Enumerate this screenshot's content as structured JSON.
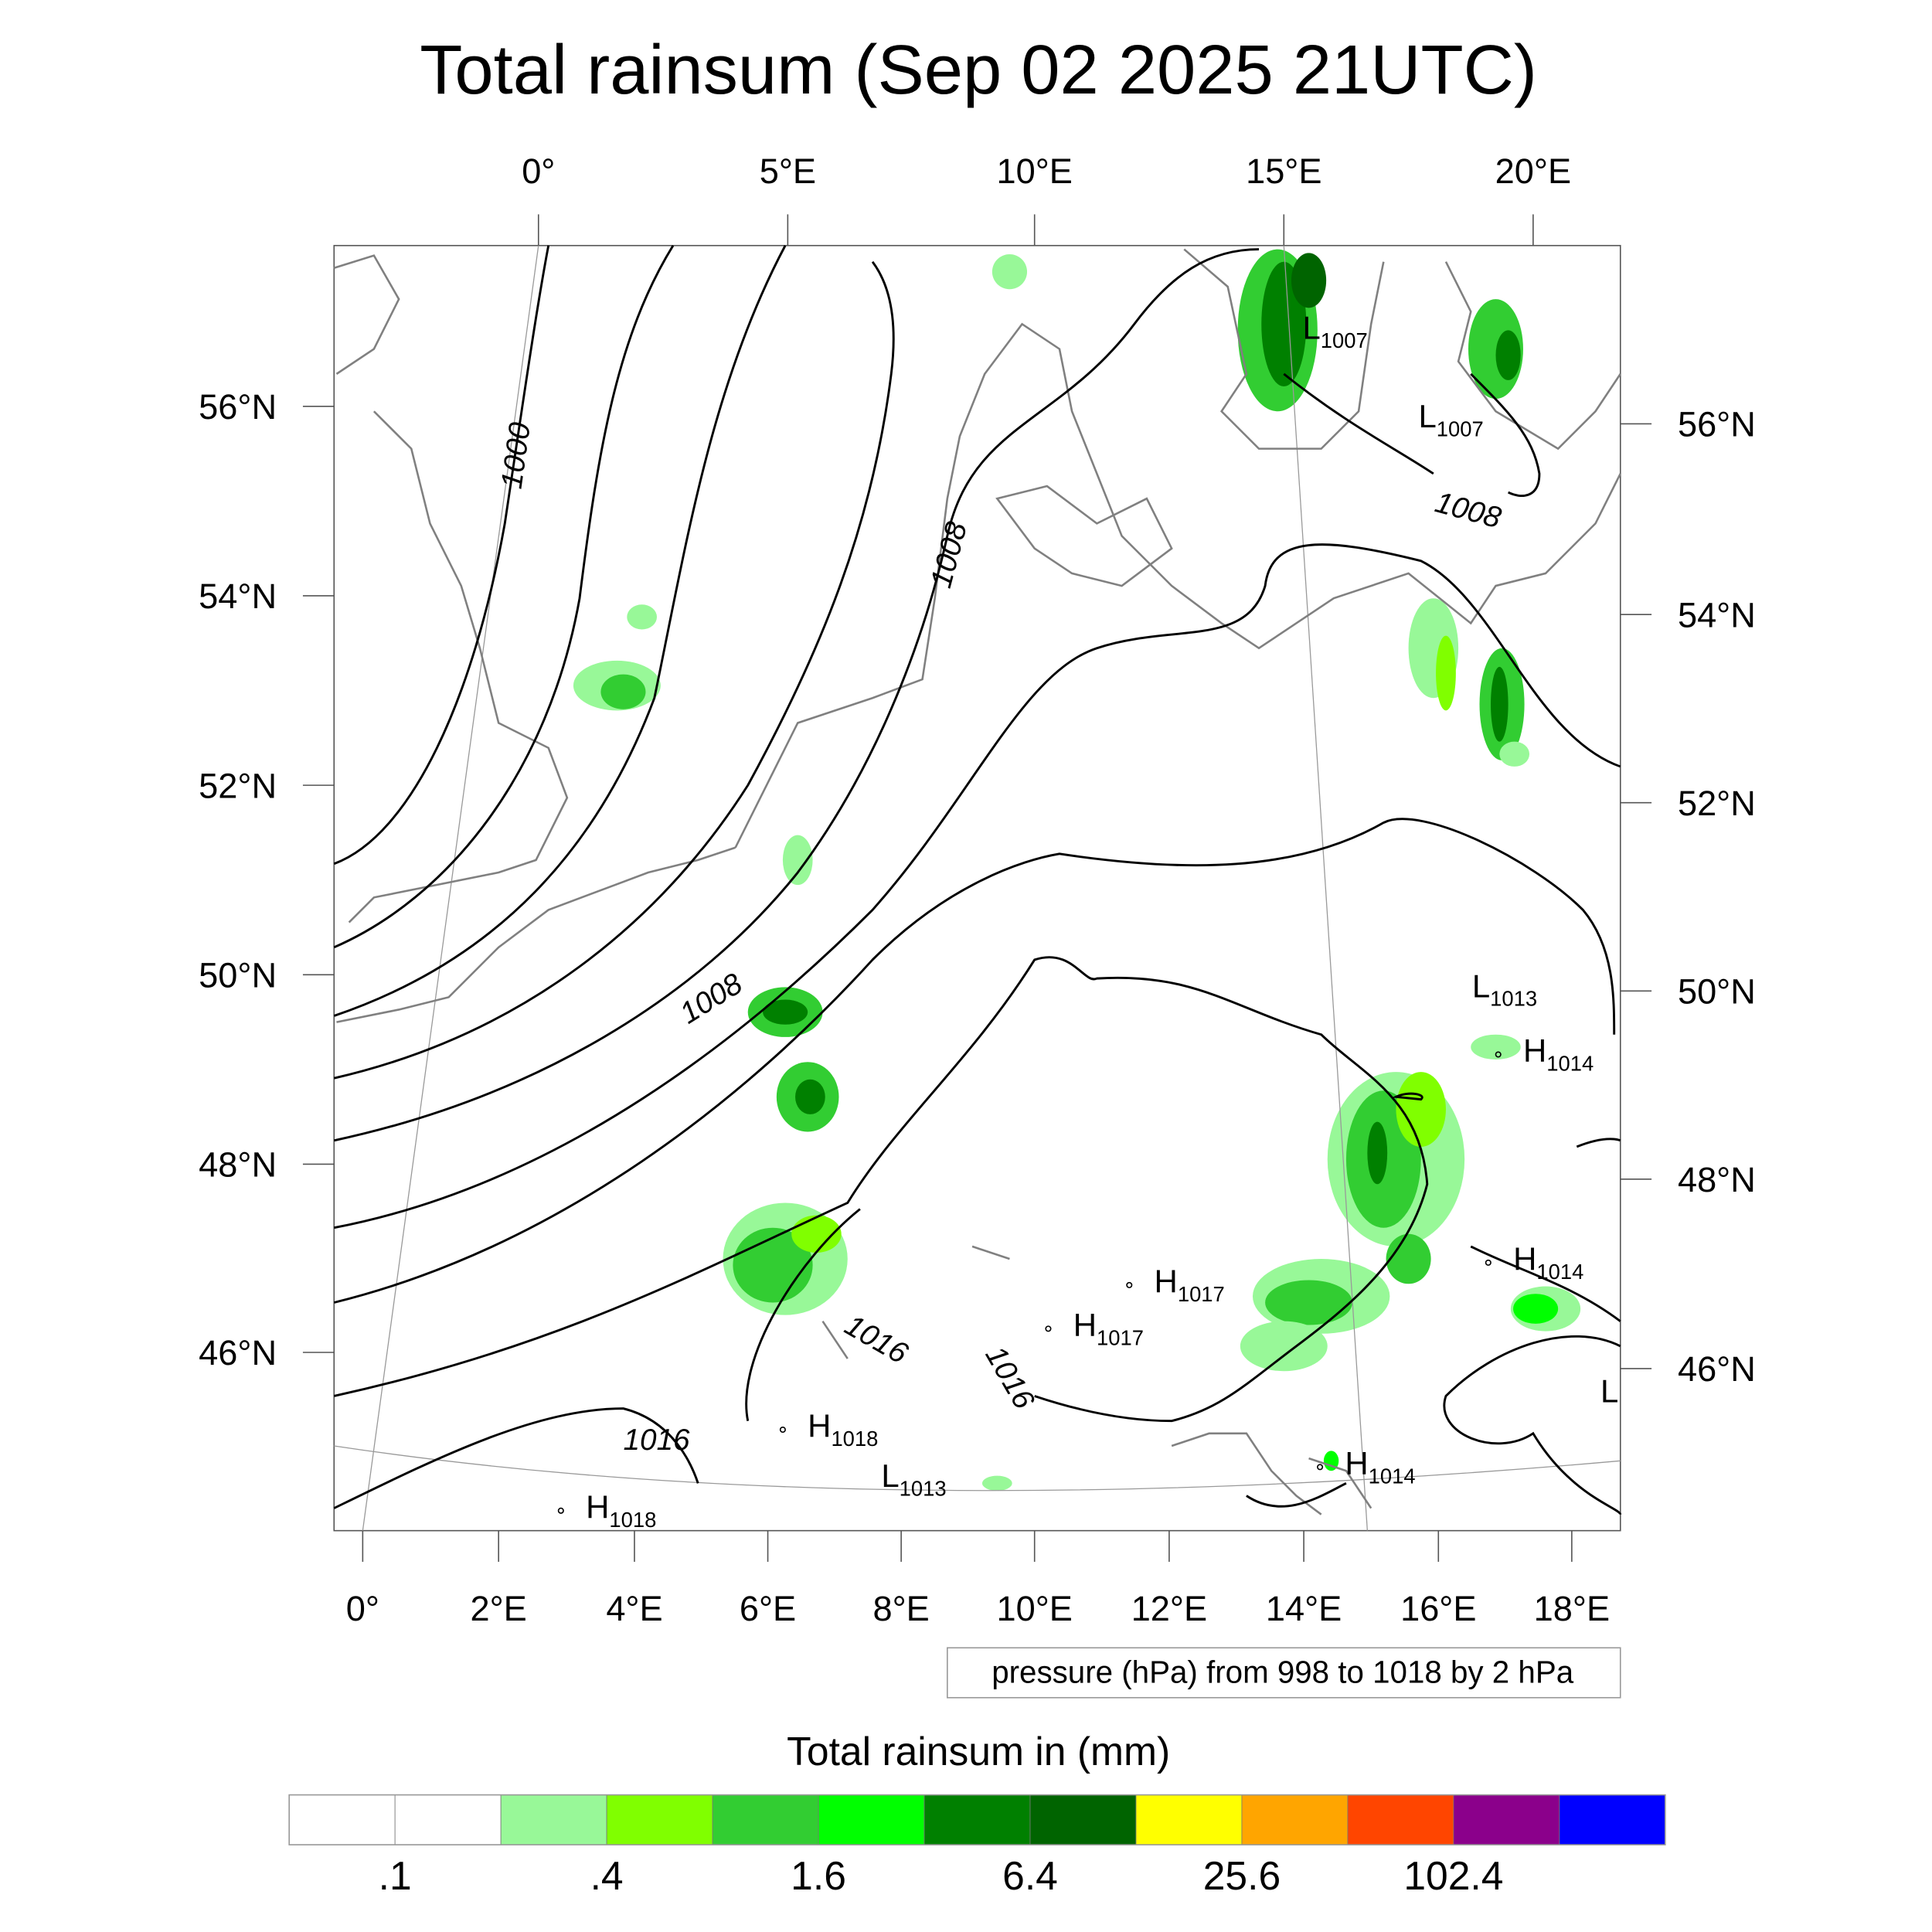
{
  "title": "Total rainsum (Sep 02 2025 21UTC)",
  "top_lon_labels": [
    "0°",
    "5°E",
    "10°E",
    "15°E",
    "20°E"
  ],
  "bottom_lon_labels": [
    "0°",
    "2°E",
    "4°E",
    "6°E",
    "8°E",
    "10°E",
    "12°E",
    "14°E",
    "16°E",
    "18°E"
  ],
  "left_lat_labels": [
    "56°N",
    "54°N",
    "52°N",
    "50°N",
    "48°N",
    "46°N"
  ],
  "right_lat_labels": [
    "56°N",
    "54°N",
    "52°N",
    "50°N",
    "48°N",
    "46°N"
  ],
  "contour_labels": [
    "1000",
    "1008",
    "1008",
    "1008",
    "1016",
    "1016",
    "1016"
  ],
  "pressure_centers": [
    {
      "type": "L",
      "value": "1007"
    },
    {
      "type": "L",
      "value": "1007"
    },
    {
      "type": "L",
      "value": "1013"
    },
    {
      "type": "H",
      "value": "1014"
    },
    {
      "type": "H",
      "value": "1014"
    },
    {
      "type": "L",
      "value": ""
    },
    {
      "type": "H",
      "value": "1017"
    },
    {
      "type": "H",
      "value": "1017"
    },
    {
      "type": "H",
      "value": "1018"
    },
    {
      "type": "L",
      "value": "1013"
    },
    {
      "type": "H",
      "value": "1014"
    },
    {
      "type": "H",
      "value": "1018"
    }
  ],
  "contour_info": "pressure (hPa) from 998 to 1018 by 2 hPa",
  "colorbar": {
    "title": "Total rainsum in (mm)",
    "colors": [
      "#ffffff",
      "#ffffff",
      "#98f898",
      "#80ff00",
      "#32cd32",
      "#00ff00",
      "#008000",
      "#006400",
      "#ffff00",
      "#ffa500",
      "#ff4500",
      "#8b008b",
      "#0000ff"
    ],
    "labels": [
      ".1",
      ".4",
      "1.6",
      "6.4",
      "25.6",
      "102.4"
    ]
  }
}
